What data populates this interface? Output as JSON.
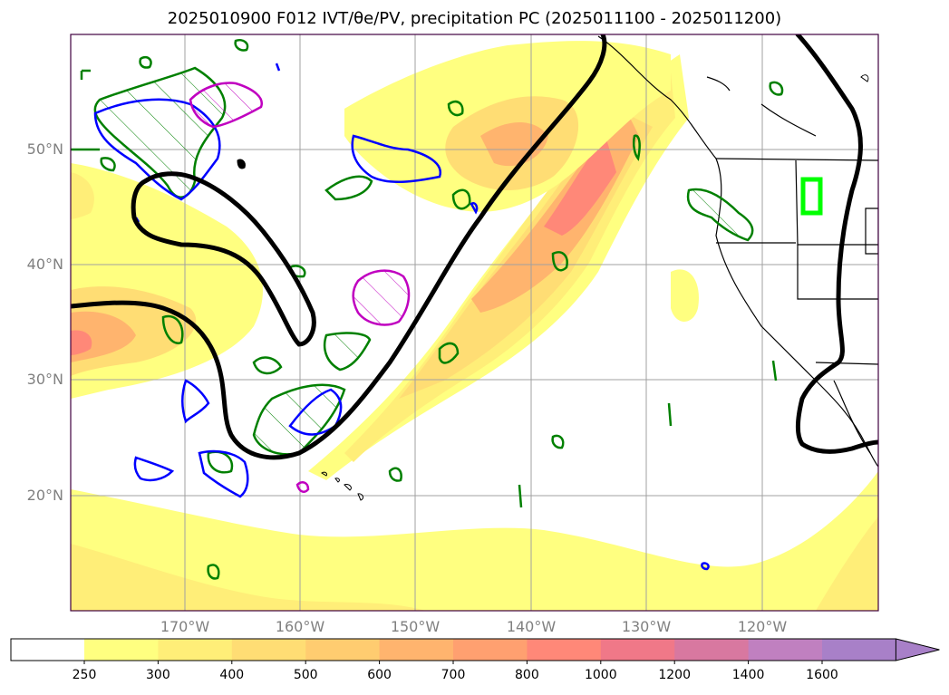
{
  "title": "2025010900 F012 IVT/θe/PV, precipitation PC (2025011100 - 2025011200)",
  "lat_labels": [
    "50°N",
    "40°N",
    "30°N",
    "20°N"
  ],
  "lon_labels": [
    "170°W",
    "160°W",
    "150°W",
    "140°W",
    "130°W",
    "120°W"
  ],
  "colorbar": {
    "ticks": [
      "250",
      "300",
      "400",
      "500",
      "600",
      "700",
      "800",
      "1000",
      "1200",
      "1400",
      "1600"
    ],
    "colors": [
      "#ffff80",
      "#ffee78",
      "#ffdd74",
      "#ffcc70",
      "#ffb46e",
      "#ffa070",
      "#ff8878",
      "#f07888",
      "#d878a0",
      "#c080c0",
      "#a880c8"
    ],
    "extend": "max"
  },
  "colors": {
    "theta_contour": "#000000",
    "pv_green": "#008000",
    "pv_blue": "#0000ff",
    "pv_magenta": "#c000c0",
    "precip_box": "#00ff00",
    "grid": "#a0a0a0",
    "frame": "#400040"
  }
}
